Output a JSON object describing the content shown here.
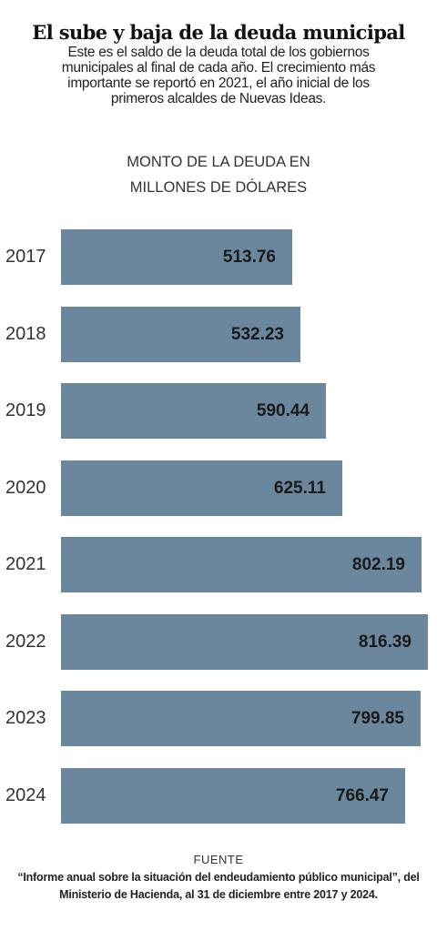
{
  "title": "El sube y baja de la deuda municipal",
  "subtitle": "Este es el saldo de la deuda total de los gobiernos municipales al final de cada año. El crecimiento más importante se reportó en 2021, el año inicial de los primeros alcaldes de Nuevas Ideas.",
  "chart_data": {
    "type": "bar",
    "orientation": "horizontal",
    "title": "El sube y baja de la deuda municipal",
    "ylabel_line1": "MONTO DE LA DEUDA EN",
    "ylabel_line2": "MILLONES DE DÓLARES",
    "categories": [
      "2017",
      "2018",
      "2019",
      "2020",
      "2021",
      "2022",
      "2023",
      "2024"
    ],
    "values": [
      513.76,
      532.23,
      590.44,
      625.11,
      802.19,
      816.39,
      799.85,
      766.47
    ],
    "value_labels": [
      "513.76",
      "532.23",
      "590.44",
      "625.11",
      "802.19",
      "816.39",
      "799.85",
      "766.47"
    ],
    "xlim": [
      0,
      816.39
    ],
    "bar_color": "#6b879e",
    "grid": false,
    "legend": "none"
  },
  "source": {
    "label": "FUENTE",
    "text": "“Informe anual sobre la situación del endeudamiento público municipal”, del Ministerio de Hacienda, al 31 de diciembre entre 2017 y 2024."
  }
}
